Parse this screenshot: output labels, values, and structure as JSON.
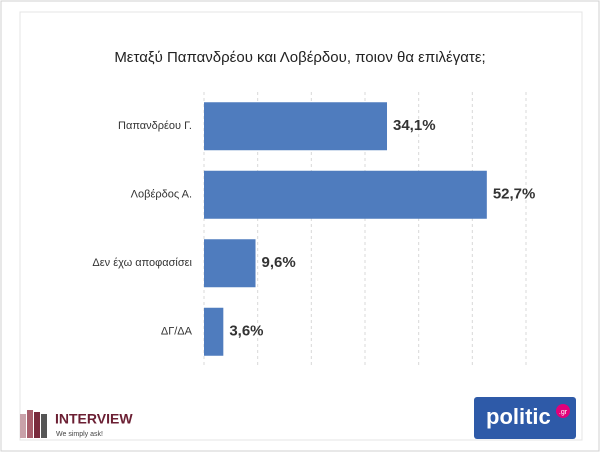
{
  "chart_data": {
    "type": "bar",
    "orientation": "horizontal",
    "title": "Μεταξύ Παπανδρέου και Λοβέρδου, ποιον θα επιλέγατε;",
    "categories": [
      "Παπανδρέου Γ.",
      "Λοβέρδος Α.",
      "Δεν έχω αποφασίσει",
      "ΔΓ/ΔΑ"
    ],
    "values": [
      34.1,
      52.7,
      9.6,
      3.6
    ],
    "value_labels": [
      "34,1%",
      "52,7%",
      "9,6%",
      "3,6%"
    ],
    "color": "#4f7cbe",
    "xlim": [
      0,
      60
    ],
    "xticks": [
      0,
      10,
      20,
      30,
      40,
      50,
      60
    ],
    "grid": true
  },
  "logos": {
    "interview": "INTERVIEW",
    "interview_tagline": "We simply ask!",
    "politic": "politic",
    "politic_suffix": ".gr"
  }
}
